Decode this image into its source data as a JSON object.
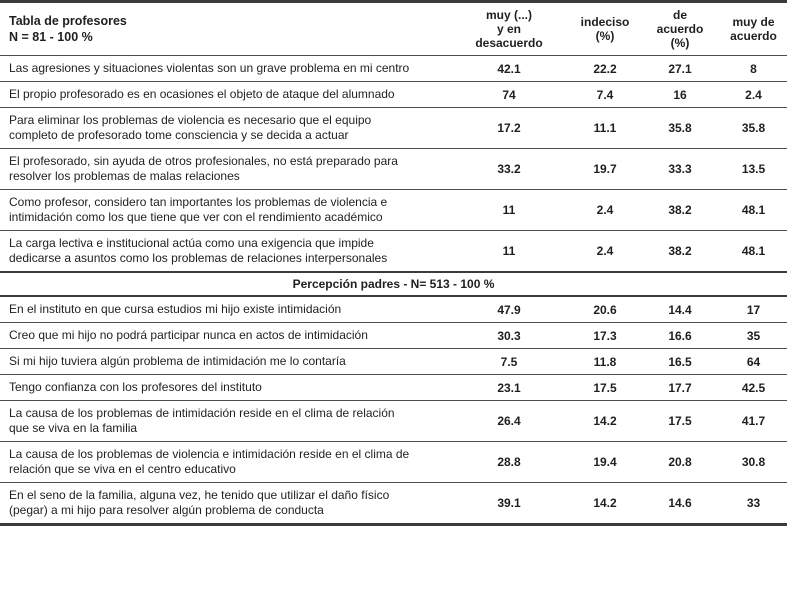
{
  "colors": {
    "background": "#ffffff",
    "text": "#1f1f1f",
    "rule_light": "#4f4f4f",
    "rule_heavy": "#3c3c3c"
  },
  "table": {
    "title": "Tabla de profesores\nN = 81 - 100 %",
    "columns": [
      "muy (...)\ny en\ndesacuerdo",
      "indeciso\n(%)",
      "de\nacuerdo\n(%)",
      "muy de\nacuerdo"
    ],
    "sections": [
      {
        "rows": [
          {
            "text": "Las agresiones y situaciones violentas son un grave problema en mi centro",
            "values": [
              "42.1",
              "22.2",
              "27.1",
              "8"
            ]
          },
          {
            "text": "El propio profesorado es en ocasiones el objeto de ataque del alumnado",
            "values": [
              "74",
              "7.4",
              "16",
              "2.4"
            ]
          },
          {
            "text": "Para eliminar los problemas de violencia es necesario que el equipo completo de profesorado tome consciencia y se decida a actuar",
            "values": [
              "17.2",
              "11.1",
              "35.8",
              "35.8"
            ]
          },
          {
            "text": "El profesorado, sin ayuda de otros profesionales, no está preparado para resolver los problemas de malas relaciones",
            "values": [
              "33.2",
              "19.7",
              "33.3",
              "13.5"
            ]
          },
          {
            "text": "Como profesor, considero tan importantes los problemas de violencia e intimidación como los que tiene que ver con el rendimiento académico",
            "values": [
              "11",
              "2.4",
              "38.2",
              "48.1"
            ]
          },
          {
            "text": "La carga lectiva e institucional actúa como una exigencia que impide dedicarse a asuntos como los problemas de relaciones interpersonales",
            "values": [
              "11",
              "2.4",
              "38.2",
              "48.1"
            ]
          }
        ]
      },
      {
        "header": "Percepción padres - N= 513 - 100 %",
        "rows": [
          {
            "text": "En el instituto en que cursa estudios mi hijo existe intimidación",
            "values": [
              "47.9",
              "20.6",
              "14.4",
              "17"
            ]
          },
          {
            "text": "Creo que mi hijo no podrá participar nunca en actos de intimidación",
            "values": [
              "30.3",
              "17.3",
              "16.6",
              "35"
            ]
          },
          {
            "text": "Si mi hijo tuviera algún problema de intimidación me lo contaría",
            "values": [
              "7.5",
              "11.8",
              "16.5",
              "64"
            ]
          },
          {
            "text": "Tengo confianza con los profesores del instituto",
            "values": [
              "23.1",
              "17.5",
              "17.7",
              "42.5"
            ]
          },
          {
            "text": "La causa de los problemas de intimidación reside en el clima de relación que se viva en la familia",
            "values": [
              "26.4",
              "14.2",
              "17.5",
              "41.7"
            ]
          },
          {
            "text": "La causa de los problemas de violencia e intimidación reside en el clima de relación que se viva en el centro educativo",
            "values": [
              "28.8",
              "19.4",
              "20.8",
              "30.8"
            ]
          },
          {
            "text": "En el seno de la familia, alguna vez, he tenido que utilizar el daño físico (pegar) a mi hijo para resolver algún problema de conducta",
            "values": [
              "39.1",
              "14.2",
              "14.6",
              "33"
            ]
          }
        ]
      }
    ]
  }
}
